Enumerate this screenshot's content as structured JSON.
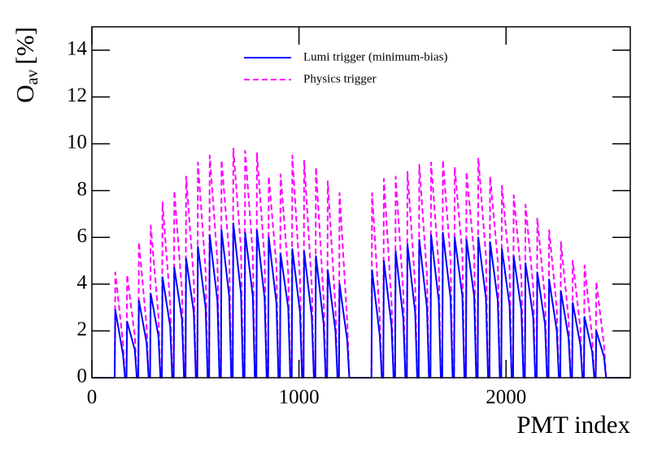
{
  "chart_data": {
    "type": "line",
    "xlabel": "PMT index",
    "ylabel": {
      "main": "O",
      "sub": "av",
      "unit": "[%]"
    },
    "xlim": [
      0,
      2600
    ],
    "xticks": [
      0,
      1000,
      2000
    ],
    "ylim": [
      0,
      15
    ],
    "yticks": [
      0,
      2,
      4,
      6,
      8,
      10,
      12,
      14
    ],
    "legend": "top",
    "x": [
      0,
      110,
      113,
      150,
      160,
      167,
      170,
      207,
      217,
      224,
      227,
      264,
      274,
      281,
      284,
      321,
      331,
      338,
      341,
      378,
      388,
      395,
      398,
      435,
      445,
      452,
      455,
      492,
      502,
      509,
      512,
      549,
      559,
      566,
      569,
      606,
      616,
      623,
      626,
      663,
      673,
      680,
      683,
      720,
      730,
      737,
      740,
      777,
      787,
      794,
      797,
      834,
      844,
      851,
      854,
      891,
      901,
      908,
      911,
      948,
      958,
      965,
      968,
      1005,
      1015,
      1022,
      1025,
      1062,
      1072,
      1079,
      1082,
      1119,
      1129,
      1136,
      1139,
      1176,
      1186,
      1193,
      1196,
      1233,
      1243,
      1350,
      1353,
      1390,
      1400,
      1407,
      1410,
      1447,
      1457,
      1464,
      1467,
      1504,
      1514,
      1521,
      1524,
      1561,
      1571,
      1578,
      1581,
      1618,
      1628,
      1635,
      1638,
      1675,
      1685,
      1692,
      1695,
      1732,
      1742,
      1749,
      1752,
      1789,
      1799,
      1806,
      1809,
      1846,
      1856,
      1863,
      1866,
      1903,
      1913,
      1920,
      1923,
      1960,
      1970,
      1977,
      1980,
      2017,
      2027,
      2034,
      2037,
      2074,
      2084,
      2091,
      2094,
      2131,
      2141,
      2148,
      2151,
      2188,
      2198,
      2205,
      2208,
      2245,
      2255,
      2262,
      2265,
      2302,
      2312,
      2319,
      2322,
      2359,
      2369,
      2376,
      2379,
      2416,
      2426,
      2433,
      2436,
      2473,
      2483,
      2600
    ],
    "series": [
      {
        "name": "Physics trigger",
        "color": "#ff00ff",
        "dashed": true,
        "values": [
          0,
          0,
          4.5,
          1.5,
          0,
          0,
          4.4,
          1.8,
          0,
          0,
          5.8,
          2.2,
          0,
          0,
          6.5,
          2.7,
          0,
          0,
          7.5,
          3.2,
          0,
          0,
          8.0,
          3.7,
          0,
          0,
          8.6,
          4.2,
          0,
          0,
          9.2,
          4.6,
          0,
          0,
          9.5,
          5.0,
          0,
          0,
          9.3,
          5.3,
          0,
          0,
          9.8,
          5.5,
          0,
          0,
          9.7,
          5.3,
          0,
          0,
          9.6,
          5.1,
          0,
          0,
          8.6,
          4.8,
          0,
          0,
          8.7,
          4.5,
          0,
          0,
          9.5,
          4.2,
          0,
          0,
          9.3,
          3.9,
          0,
          0,
          9.0,
          3.4,
          0,
          0,
          8.4,
          3.0,
          0,
          0,
          7.9,
          2.4,
          0,
          0,
          7.9,
          2.6,
          0,
          0,
          8.5,
          3.2,
          0,
          0,
          8.6,
          3.6,
          0,
          0,
          8.8,
          4.0,
          0,
          0,
          9.1,
          4.4,
          0,
          0,
          9.2,
          4.8,
          0,
          0,
          9.3,
          5.1,
          0,
          0,
          9.0,
          5.3,
          0,
          0,
          8.8,
          5.3,
          0,
          0,
          9.4,
          5.2,
          0,
          0,
          8.6,
          5.0,
          0,
          0,
          8.2,
          4.7,
          0,
          0,
          7.8,
          4.3,
          0,
          0,
          7.4,
          3.9,
          0,
          0,
          6.8,
          3.4,
          0,
          0,
          6.3,
          3.0,
          0,
          0,
          5.8,
          2.5,
          0,
          0,
          5.0,
          2.1,
          0,
          0,
          4.8,
          1.7,
          0,
          0,
          4.1,
          1.4,
          0,
          0
        ]
      },
      {
        "name": "Lumi trigger (minimum-bias)",
        "color": "#0000ff",
        "dashed": false,
        "values": [
          0,
          0,
          2.9,
          1.0,
          0,
          0,
          2.4,
          1.2,
          0,
          0,
          3.3,
          1.5,
          0,
          0,
          3.6,
          1.8,
          0,
          0,
          4.3,
          2.2,
          0,
          0,
          4.7,
          2.5,
          0,
          0,
          5.1,
          2.8,
          0,
          0,
          5.6,
          3.0,
          0,
          0,
          6.1,
          3.3,
          0,
          0,
          6.3,
          3.5,
          0,
          0,
          6.6,
          3.6,
          0,
          0,
          6.2,
          3.5,
          0,
          0,
          6.3,
          3.4,
          0,
          0,
          6.0,
          3.2,
          0,
          0,
          5.3,
          3.0,
          0,
          0,
          5.5,
          2.8,
          0,
          0,
          5.4,
          2.6,
          0,
          0,
          5.2,
          2.3,
          0,
          0,
          4.6,
          2.0,
          0,
          0,
          4.0,
          1.6,
          0,
          0,
          4.6,
          1.8,
          0,
          0,
          5.0,
          2.2,
          0,
          0,
          5.4,
          2.5,
          0,
          0,
          5.7,
          2.8,
          0,
          0,
          5.9,
          3.0,
          0,
          0,
          6.1,
          3.3,
          0,
          0,
          6.2,
          3.4,
          0,
          0,
          6.0,
          3.5,
          0,
          0,
          5.9,
          3.5,
          0,
          0,
          6.0,
          3.4,
          0,
          0,
          5.8,
          3.3,
          0,
          0,
          5.5,
          3.1,
          0,
          0,
          5.2,
          2.9,
          0,
          0,
          4.9,
          2.6,
          0,
          0,
          4.5,
          2.3,
          0,
          0,
          4.2,
          2.0,
          0,
          0,
          3.7,
          1.7,
          0,
          0,
          3.2,
          1.4,
          0,
          0,
          2.6,
          1.1,
          0,
          0,
          2.0,
          0.9,
          0,
          0
        ]
      }
    ]
  }
}
